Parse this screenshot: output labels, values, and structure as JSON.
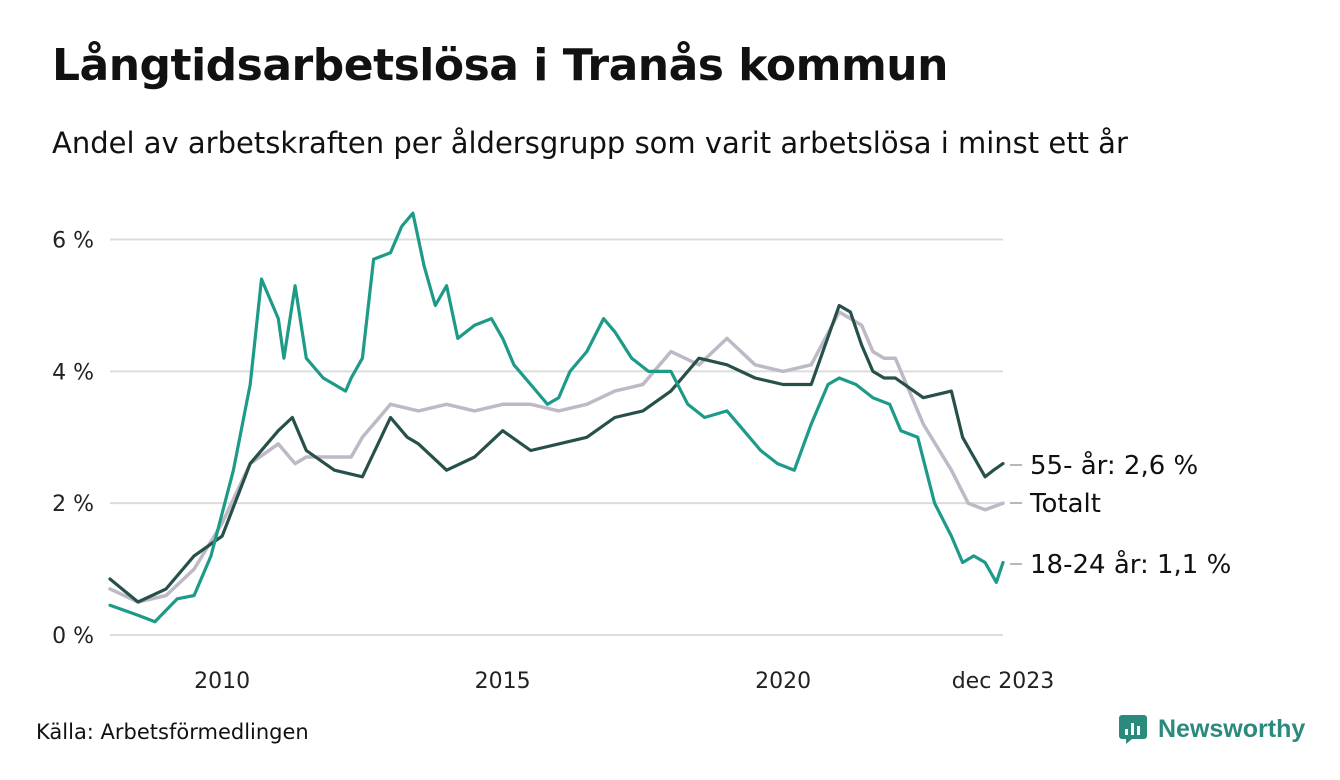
{
  "title": "Långtidsarbetslösa i Tranås kommun",
  "subtitle": "Andel av arbetskraften per åldersgrupp som varit arbetslösa i minst ett år",
  "source": "Källa: Arbetsförmedlingen",
  "brand": {
    "name": "Newsworthy",
    "icon": "bar-chart-logo-icon",
    "color": "#2a8a7c"
  },
  "chart_data": {
    "type": "line",
    "x_unit": "year",
    "xlim": [
      2008.0,
      2023.92
    ],
    "ylim": [
      0,
      6.6
    ],
    "y_ticks": [
      0,
      2,
      4,
      6
    ],
    "y_tick_labels": [
      "0 %",
      "2 %",
      "4 %",
      "6 %"
    ],
    "x_ticks": [
      2010,
      2015,
      2020,
      2023.92
    ],
    "x_tick_labels": [
      "2010",
      "2015",
      "2020",
      "dec 2023"
    ],
    "grid": true,
    "legend": "end-labels",
    "series": [
      {
        "name": "Totalt",
        "end_label": "Totalt",
        "color": "#bdb9c6",
        "x": [
          2008.0,
          2008.5,
          2009.0,
          2009.5,
          2010.0,
          2010.5,
          2011.0,
          2011.3,
          2011.5,
          2012.0,
          2012.3,
          2012.5,
          2013.0,
          2013.5,
          2014.0,
          2014.5,
          2015.0,
          2015.5,
          2016.0,
          2016.5,
          2017.0,
          2017.5,
          2018.0,
          2018.5,
          2019.0,
          2019.5,
          2020.0,
          2020.5,
          2021.0,
          2021.2,
          2021.4,
          2021.6,
          2021.8,
          2022.0,
          2022.5,
          2023.0,
          2023.3,
          2023.6,
          2023.92
        ],
        "y": [
          0.7,
          0.5,
          0.6,
          1.0,
          1.7,
          2.6,
          2.9,
          2.6,
          2.7,
          2.7,
          2.7,
          3.0,
          3.5,
          3.4,
          3.5,
          3.4,
          3.5,
          3.5,
          3.4,
          3.5,
          3.7,
          3.8,
          4.3,
          4.1,
          4.5,
          4.1,
          4.0,
          4.1,
          4.9,
          4.8,
          4.7,
          4.3,
          4.2,
          4.2,
          3.2,
          2.5,
          2.0,
          1.9,
          2.0
        ]
      },
      {
        "name": "55- år",
        "end_label": "55- år: 2,6 %",
        "color": "#27504a",
        "x": [
          2008.0,
          2008.5,
          2009.0,
          2009.5,
          2010.0,
          2010.5,
          2011.0,
          2011.25,
          2011.5,
          2012.0,
          2012.5,
          2013.0,
          2013.3,
          2013.5,
          2014.0,
          2014.5,
          2015.0,
          2015.5,
          2016.0,
          2016.5,
          2017.0,
          2017.5,
          2018.0,
          2018.5,
          2019.0,
          2019.5,
          2020.0,
          2020.5,
          2021.0,
          2021.2,
          2021.4,
          2021.6,
          2021.8,
          2022.0,
          2022.5,
          2023.0,
          2023.2,
          2023.4,
          2023.6,
          2023.75,
          2023.92
        ],
        "y": [
          0.85,
          0.5,
          0.7,
          1.2,
          1.5,
          2.6,
          3.1,
          3.3,
          2.8,
          2.5,
          2.4,
          3.3,
          3.0,
          2.9,
          2.5,
          2.7,
          3.1,
          2.8,
          2.9,
          3.0,
          3.3,
          3.4,
          3.7,
          4.2,
          4.1,
          3.9,
          3.8,
          3.8,
          5.0,
          4.9,
          4.4,
          4.0,
          3.9,
          3.9,
          3.6,
          3.7,
          3.0,
          2.7,
          2.4,
          2.5,
          2.6
        ]
      },
      {
        "name": "18-24 år",
        "end_label": "18-24 år: 1,1 %",
        "color": "#1e9a88",
        "x": [
          2008.0,
          2008.5,
          2008.8,
          2009.2,
          2009.5,
          2009.8,
          2010.2,
          2010.5,
          2010.7,
          2011.0,
          2011.1,
          2011.3,
          2011.5,
          2011.8,
          2012.0,
          2012.2,
          2012.3,
          2012.5,
          2012.7,
          2013.0,
          2013.2,
          2013.4,
          2013.6,
          2013.8,
          2014.0,
          2014.2,
          2014.5,
          2014.8,
          2015.0,
          2015.2,
          2015.5,
          2015.8,
          2016.0,
          2016.2,
          2016.5,
          2016.8,
          2017.0,
          2017.3,
          2017.6,
          2018.0,
          2018.3,
          2018.6,
          2019.0,
          2019.3,
          2019.6,
          2019.9,
          2020.2,
          2020.5,
          2020.8,
          2021.0,
          2021.3,
          2021.6,
          2021.9,
          2022.1,
          2022.4,
          2022.7,
          2023.0,
          2023.2,
          2023.4,
          2023.6,
          2023.8,
          2023.92
        ],
        "y": [
          0.45,
          0.3,
          0.2,
          0.55,
          0.6,
          1.2,
          2.5,
          3.8,
          5.4,
          4.8,
          4.2,
          5.3,
          4.2,
          3.9,
          3.8,
          3.7,
          3.9,
          4.2,
          5.7,
          5.8,
          6.2,
          6.4,
          5.6,
          5.0,
          5.3,
          4.5,
          4.7,
          4.8,
          4.5,
          4.1,
          3.8,
          3.5,
          3.6,
          4.0,
          4.3,
          4.8,
          4.6,
          4.2,
          4.0,
          4.0,
          3.5,
          3.3,
          3.4,
          3.1,
          2.8,
          2.6,
          2.5,
          3.2,
          3.8,
          3.9,
          3.8,
          3.6,
          3.5,
          3.1,
          3.0,
          2.0,
          1.5,
          1.1,
          1.2,
          1.1,
          0.8,
          1.1
        ]
      }
    ]
  }
}
